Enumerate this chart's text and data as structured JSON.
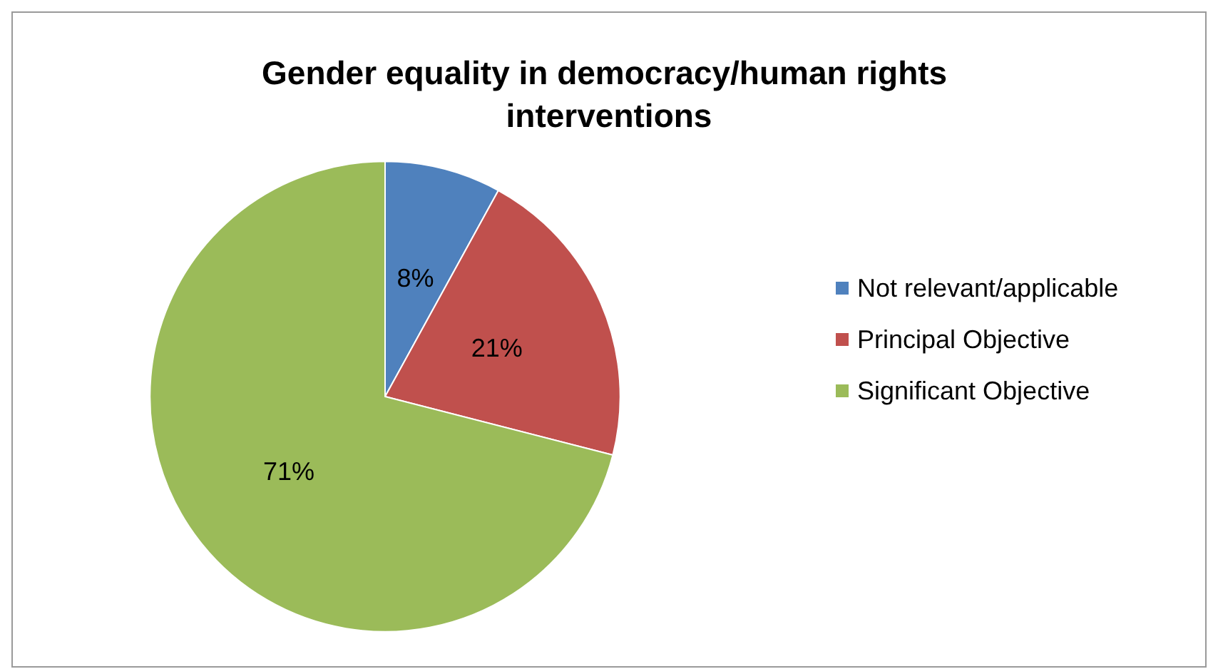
{
  "chart_data": {
    "type": "pie",
    "title": "Gender equality in democracy/human rights interventions",
    "categories": [
      "Not relevant/applicable",
      "Principal Objective",
      "Significant Objective"
    ],
    "values": [
      8,
      21,
      71
    ],
    "value_labels": [
      "8%",
      "21%",
      "71%"
    ],
    "colors": [
      "#4f81bd",
      "#c0504d",
      "#9bbb59"
    ],
    "legend": "right"
  }
}
